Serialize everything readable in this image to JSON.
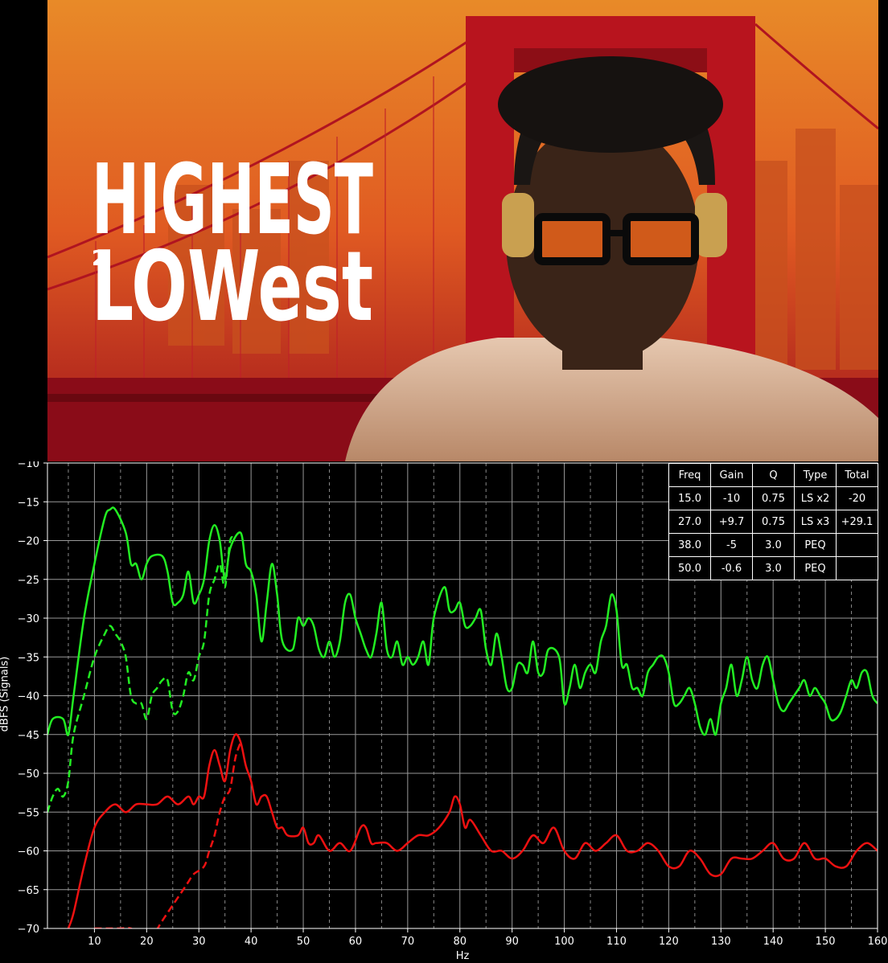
{
  "poster": {
    "title_line1": "HIGHEST",
    "title_small": "2",
    "title_line2": "LOWest",
    "colors": {
      "sky_top": "#f0a030",
      "sky_bottom": "#d04020",
      "bridge": "#b8141e",
      "title": "#ffffff"
    }
  },
  "eq_table": {
    "headers": [
      "Freq",
      "Gain",
      "Q",
      "Type",
      "Total"
    ],
    "rows": [
      [
        "15.0",
        "-10",
        "0.75",
        "LS x2",
        "-20"
      ],
      [
        "27.0",
        "+9.7",
        "0.75",
        "LS x3",
        "+29.1"
      ],
      [
        "38.0",
        "-5",
        "3.0",
        "PEQ",
        ""
      ],
      [
        "50.0",
        "-0.6",
        "3.0",
        "PEQ",
        ""
      ]
    ]
  },
  "chart_data": {
    "type": "line",
    "xlabel": "Hz",
    "ylabel": "dBFS (Signals)",
    "xlim": [
      1,
      160
    ],
    "ylim": [
      -70,
      -10
    ],
    "x_ticks": [
      10,
      20,
      30,
      40,
      50,
      60,
      70,
      80,
      90,
      100,
      110,
      120,
      130,
      140,
      150,
      160
    ],
    "y_ticks": [
      -10,
      -15,
      -20,
      -25,
      -30,
      -35,
      -40,
      -45,
      -50,
      -55,
      -60,
      -65,
      -70
    ],
    "grid": true,
    "series": [
      {
        "color": "#22ee22",
        "dash": false,
        "points": [
          [
            1,
            -45
          ],
          [
            2,
            -43
          ],
          [
            4,
            -43
          ],
          [
            5,
            -45
          ],
          [
            6,
            -40
          ],
          [
            8,
            -30
          ],
          [
            10,
            -23
          ],
          [
            12,
            -17
          ],
          [
            13,
            -16
          ],
          [
            14,
            -16
          ],
          [
            16,
            -19
          ],
          [
            17,
            -23
          ],
          [
            18,
            -23
          ],
          [
            19,
            -25
          ],
          [
            20,
            -23
          ],
          [
            21,
            -22
          ],
          [
            23,
            -22
          ],
          [
            24,
            -24
          ],
          [
            25,
            -28
          ],
          [
            26,
            -28
          ],
          [
            27,
            -27
          ],
          [
            28,
            -24
          ],
          [
            29,
            -28
          ],
          [
            30,
            -27
          ],
          [
            31,
            -25
          ],
          [
            32,
            -20
          ],
          [
            33,
            -18
          ],
          [
            34,
            -20
          ],
          [
            35,
            -25
          ],
          [
            36,
            -21
          ],
          [
            38,
            -19
          ],
          [
            39,
            -23
          ],
          [
            40,
            -24
          ],
          [
            41,
            -27
          ],
          [
            42,
            -33
          ],
          [
            43,
            -28
          ],
          [
            44,
            -23
          ],
          [
            45,
            -27
          ],
          [
            46,
            -33
          ],
          [
            48,
            -34
          ],
          [
            49,
            -30
          ],
          [
            50,
            -31
          ],
          [
            51,
            -30
          ],
          [
            52,
            -31
          ],
          [
            53,
            -34
          ],
          [
            54,
            -35
          ],
          [
            55,
            -33
          ],
          [
            56,
            -35
          ],
          [
            57,
            -33
          ],
          [
            58,
            -28
          ],
          [
            59,
            -27
          ],
          [
            60,
            -30
          ],
          [
            61,
            -32
          ],
          [
            62,
            -34
          ],
          [
            63,
            -35
          ],
          [
            64,
            -32
          ],
          [
            65,
            -28
          ],
          [
            66,
            -34
          ],
          [
            67,
            -35
          ],
          [
            68,
            -33
          ],
          [
            69,
            -36
          ],
          [
            70,
            -35
          ],
          [
            71,
            -36
          ],
          [
            72,
            -35
          ],
          [
            73,
            -33
          ],
          [
            74,
            -36
          ],
          [
            75,
            -30
          ],
          [
            77,
            -26
          ],
          [
            78,
            -29
          ],
          [
            79,
            -29
          ],
          [
            80,
            -28
          ],
          [
            81,
            -31
          ],
          [
            82,
            -31
          ],
          [
            83,
            -30
          ],
          [
            84,
            -29
          ],
          [
            85,
            -34
          ],
          [
            86,
            -36
          ],
          [
            87,
            -32
          ],
          [
            88,
            -35
          ],
          [
            89,
            -39
          ],
          [
            90,
            -39
          ],
          [
            91,
            -36
          ],
          [
            92,
            -36
          ],
          [
            93,
            -37
          ],
          [
            94,
            -33
          ],
          [
            95,
            -37
          ],
          [
            96,
            -37
          ],
          [
            97,
            -34
          ],
          [
            99,
            -35
          ],
          [
            100,
            -41
          ],
          [
            101,
            -39
          ],
          [
            102,
            -36
          ],
          [
            103,
            -39
          ],
          [
            104,
            -37
          ],
          [
            105,
            -36
          ],
          [
            106,
            -37
          ],
          [
            107,
            -33
          ],
          [
            108,
            -31
          ],
          [
            109,
            -27
          ],
          [
            110,
            -29
          ],
          [
            111,
            -36
          ],
          [
            112,
            -36
          ],
          [
            113,
            -39
          ],
          [
            114,
            -39
          ],
          [
            115,
            -40
          ],
          [
            116,
            -37
          ],
          [
            117,
            -36
          ],
          [
            118,
            -35
          ],
          [
            119,
            -35
          ],
          [
            120,
            -37
          ],
          [
            121,
            -41
          ],
          [
            122,
            -41
          ],
          [
            123,
            -40
          ],
          [
            124,
            -39
          ],
          [
            125,
            -41
          ],
          [
            126,
            -44
          ],
          [
            127,
            -45
          ],
          [
            128,
            -43
          ],
          [
            129,
            -45
          ],
          [
            130,
            -41
          ],
          [
            131,
            -39
          ],
          [
            132,
            -36
          ],
          [
            133,
            -40
          ],
          [
            134,
            -38
          ],
          [
            135,
            -35
          ],
          [
            136,
            -38
          ],
          [
            137,
            -39
          ],
          [
            138,
            -36
          ],
          [
            139,
            -35
          ],
          [
            140,
            -38
          ],
          [
            141,
            -41
          ],
          [
            142,
            -42
          ],
          [
            143,
            -41
          ],
          [
            144,
            -40
          ],
          [
            145,
            -39
          ],
          [
            146,
            -38
          ],
          [
            147,
            -40
          ],
          [
            148,
            -39
          ],
          [
            149,
            -40
          ],
          [
            150,
            -41
          ],
          [
            151,
            -43
          ],
          [
            152,
            -43
          ],
          [
            153,
            -42
          ],
          [
            154,
            -40
          ],
          [
            155,
            -38
          ],
          [
            156,
            -39
          ],
          [
            157,
            -37
          ],
          [
            158,
            -37
          ],
          [
            159,
            -40
          ],
          [
            160,
            -41
          ]
        ]
      },
      {
        "color": "#22ee22",
        "dash": true,
        "points": [
          [
            1,
            -55
          ],
          [
            2,
            -53
          ],
          [
            3,
            -52
          ],
          [
            4,
            -53
          ],
          [
            5,
            -51
          ],
          [
            6,
            -45
          ],
          [
            8,
            -40
          ],
          [
            10,
            -35
          ],
          [
            12,
            -32
          ],
          [
            13,
            -31
          ],
          [
            14,
            -32
          ],
          [
            15,
            -33
          ],
          [
            16,
            -35
          ],
          [
            17,
            -40
          ],
          [
            18,
            -41
          ],
          [
            19,
            -41
          ],
          [
            20,
            -43
          ],
          [
            21,
            -40
          ],
          [
            22,
            -39
          ],
          [
            23,
            -38
          ],
          [
            24,
            -38
          ],
          [
            25,
            -42
          ],
          [
            26,
            -42
          ],
          [
            27,
            -40
          ],
          [
            28,
            -37
          ],
          [
            29,
            -38
          ],
          [
            30,
            -35
          ],
          [
            31,
            -33
          ],
          [
            32,
            -27
          ],
          [
            33,
            -25
          ],
          [
            34,
            -23
          ],
          [
            35,
            -26
          ],
          [
            36,
            -20
          ],
          [
            37,
            -20
          ]
        ]
      },
      {
        "color": "#ee1111",
        "dash": false,
        "points": [
          [
            5,
            -70
          ],
          [
            6,
            -68
          ],
          [
            8,
            -62
          ],
          [
            10,
            -57
          ],
          [
            12,
            -55
          ],
          [
            14,
            -54
          ],
          [
            16,
            -55
          ],
          [
            18,
            -54
          ],
          [
            20,
            -54
          ],
          [
            22,
            -54
          ],
          [
            24,
            -53
          ],
          [
            26,
            -54
          ],
          [
            28,
            -53
          ],
          [
            29,
            -54
          ],
          [
            30,
            -53
          ],
          [
            31,
            -53
          ],
          [
            32,
            -49
          ],
          [
            33,
            -47
          ],
          [
            34,
            -49
          ],
          [
            35,
            -51
          ],
          [
            36,
            -47
          ],
          [
            37,
            -45
          ],
          [
            38,
            -46
          ],
          [
            39,
            -49
          ],
          [
            40,
            -51
          ],
          [
            41,
            -54
          ],
          [
            42,
            -53
          ],
          [
            43,
            -53
          ],
          [
            44,
            -55
          ],
          [
            45,
            -57
          ],
          [
            46,
            -57
          ],
          [
            47,
            -58
          ],
          [
            49,
            -58
          ],
          [
            50,
            -57
          ],
          [
            51,
            -59
          ],
          [
            52,
            -59
          ],
          [
            53,
            -58
          ],
          [
            55,
            -60
          ],
          [
            57,
            -59
          ],
          [
            59,
            -60
          ],
          [
            61,
            -57
          ],
          [
            62,
            -57
          ],
          [
            63,
            -59
          ],
          [
            64,
            -59
          ],
          [
            66,
            -59
          ],
          [
            68,
            -60
          ],
          [
            70,
            -59
          ],
          [
            72,
            -58
          ],
          [
            74,
            -58
          ],
          [
            76,
            -57
          ],
          [
            78,
            -55
          ],
          [
            79,
            -53
          ],
          [
            80,
            -54
          ],
          [
            81,
            -57
          ],
          [
            82,
            -56
          ],
          [
            84,
            -58
          ],
          [
            86,
            -60
          ],
          [
            88,
            -60
          ],
          [
            90,
            -61
          ],
          [
            92,
            -60
          ],
          [
            94,
            -58
          ],
          [
            96,
            -59
          ],
          [
            98,
            -57
          ],
          [
            100,
            -60
          ],
          [
            102,
            -61
          ],
          [
            104,
            -59
          ],
          [
            106,
            -60
          ],
          [
            108,
            -59
          ],
          [
            110,
            -58
          ],
          [
            112,
            -60
          ],
          [
            114,
            -60
          ],
          [
            116,
            -59
          ],
          [
            118,
            -60
          ],
          [
            120,
            -62
          ],
          [
            122,
            -62
          ],
          [
            124,
            -60
          ],
          [
            126,
            -61
          ],
          [
            128,
            -63
          ],
          [
            130,
            -63
          ],
          [
            132,
            -61
          ],
          [
            134,
            -61
          ],
          [
            136,
            -61
          ],
          [
            138,
            -60
          ],
          [
            140,
            -59
          ],
          [
            142,
            -61
          ],
          [
            144,
            -61
          ],
          [
            146,
            -59
          ],
          [
            148,
            -61
          ],
          [
            150,
            -61
          ],
          [
            152,
            -62
          ],
          [
            154,
            -62
          ],
          [
            156,
            -60
          ],
          [
            158,
            -59
          ],
          [
            160,
            -60
          ]
        ]
      },
      {
        "color": "#ee1111",
        "dash": true,
        "points": [
          [
            10,
            -70
          ],
          [
            12,
            -70
          ],
          [
            13,
            -70
          ],
          [
            15,
            -70
          ],
          [
            17,
            -70
          ],
          [
            19,
            -71
          ],
          [
            21,
            -71
          ],
          [
            23,
            -69
          ],
          [
            25,
            -67
          ],
          [
            27,
            -65
          ],
          [
            28,
            -64
          ],
          [
            29,
            -63
          ],
          [
            31,
            -62
          ],
          [
            32,
            -60
          ],
          [
            33,
            -58
          ],
          [
            34,
            -55
          ],
          [
            35,
            -53
          ],
          [
            36,
            -52
          ],
          [
            37,
            -48
          ],
          [
            38,
            -46
          ]
        ]
      }
    ]
  }
}
